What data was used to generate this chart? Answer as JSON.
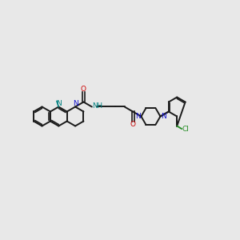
{
  "bg_color": "#e8e8e8",
  "bond_color": "#1a1a1a",
  "N_color": "#1010cc",
  "O_color": "#cc0000",
  "Cl_color": "#228b22",
  "NH_color": "#008080",
  "figsize": [
    3.0,
    3.0
  ],
  "dpi": 100,
  "xlim": [
    0,
    10
  ],
  "ylim": [
    0,
    10
  ]
}
